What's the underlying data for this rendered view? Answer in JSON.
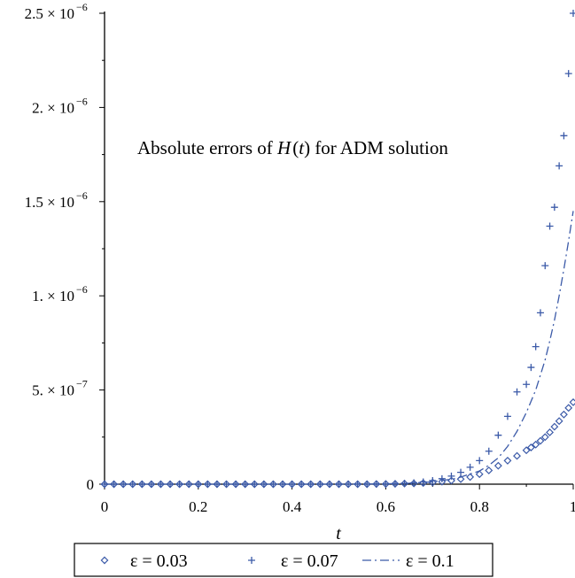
{
  "chart_data": {
    "type": "scatter",
    "annotation": {
      "prefix": "Absolute errors of ",
      "func": "H",
      "arg_open": "(",
      "arg": "t",
      "arg_close": ")",
      "suffix": " for ADM solution"
    },
    "xlabel": "t",
    "ylabel": "",
    "xlim": [
      0,
      1
    ],
    "ylim": [
      0,
      2.5e-06
    ],
    "x_ticks": [
      {
        "value": 0,
        "label": "0"
      },
      {
        "value": 0.2,
        "label": "0.2"
      },
      {
        "value": 0.4,
        "label": "0.4"
      },
      {
        "value": 0.6,
        "label": "0.6"
      },
      {
        "value": 0.8,
        "label": "0.8"
      },
      {
        "value": 1,
        "label": "1"
      }
    ],
    "y_ticks": [
      {
        "value": 0,
        "mantissa": "0",
        "exp": ""
      },
      {
        "value": 5e-07,
        "mantissa": "5. × 10",
        "exp": "−7"
      },
      {
        "value": 1e-06,
        "mantissa": "1. × 10",
        "exp": "−6"
      },
      {
        "value": 1.5e-06,
        "mantissa": "1.5 × 10",
        "exp": "−6"
      },
      {
        "value": 2e-06,
        "mantissa": "2. × 10",
        "exp": "−6"
      },
      {
        "value": 2.5e-06,
        "mantissa": "2.5 × 10",
        "exp": "−6"
      }
    ],
    "grid": false,
    "legend_position": "bottom",
    "color": "#3b5aa8",
    "series": [
      {
        "name": "ε = 0.03",
        "marker": "diamond",
        "x": [
          0,
          0.02,
          0.04,
          0.06,
          0.08,
          0.1,
          0.12,
          0.14,
          0.16,
          0.18,
          0.2,
          0.22,
          0.24,
          0.26,
          0.28,
          0.3,
          0.32,
          0.34,
          0.36,
          0.38,
          0.4,
          0.42,
          0.44,
          0.46,
          0.48,
          0.5,
          0.52,
          0.54,
          0.56,
          0.58,
          0.6,
          0.62,
          0.64,
          0.66,
          0.68,
          0.7,
          0.72,
          0.74,
          0.76,
          0.78,
          0.8,
          0.82,
          0.84,
          0.86,
          0.88,
          0.9,
          0.91,
          0.92,
          0.93,
          0.94,
          0.95,
          0.96,
          0.97,
          0.98,
          0.99,
          1
        ],
        "y": [
          0,
          0,
          0,
          0,
          0,
          0,
          0,
          0,
          0,
          0,
          0,
          0,
          0,
          0,
          0,
          0,
          0,
          0,
          0,
          0,
          0,
          0,
          0,
          0,
          0,
          0,
          0,
          0,
          0,
          1e-09,
          1e-09,
          2e-09,
          3e-09,
          4e-09,
          6e-09,
          9e-09,
          1.3e-08,
          1.9e-08,
          2.7e-08,
          3.8e-08,
          5.3e-08,
          7.3e-08,
          9.8e-08,
          1.25e-07,
          1.5e-07,
          1.8e-07,
          1.95e-07,
          2.1e-07,
          2.3e-07,
          2.5e-07,
          2.75e-07,
          3.05e-07,
          3.35e-07,
          3.7e-07,
          4.05e-07,
          4.35e-07
        ]
      },
      {
        "name": "ε = 0.07",
        "marker": "plus",
        "x": [
          0,
          0.02,
          0.04,
          0.06,
          0.08,
          0.1,
          0.12,
          0.14,
          0.16,
          0.18,
          0.2,
          0.22,
          0.24,
          0.26,
          0.28,
          0.3,
          0.32,
          0.34,
          0.36,
          0.38,
          0.4,
          0.42,
          0.44,
          0.46,
          0.48,
          0.5,
          0.52,
          0.54,
          0.56,
          0.58,
          0.6,
          0.62,
          0.64,
          0.66,
          0.68,
          0.7,
          0.72,
          0.74,
          0.76,
          0.78,
          0.8,
          0.82,
          0.84,
          0.86,
          0.88,
          0.9,
          0.91,
          0.92,
          0.93,
          0.94,
          0.95,
          0.96,
          0.97,
          0.98,
          0.99,
          1
        ],
        "y": [
          0,
          0,
          0,
          0,
          0,
          0,
          0,
          0,
          0,
          0,
          0,
          0,
          0,
          0,
          0,
          0,
          0,
          0,
          0,
          0,
          0,
          0,
          0,
          0,
          0,
          0,
          0,
          0,
          0,
          0,
          1e-09,
          2e-09,
          4e-09,
          7e-09,
          1.2e-08,
          1.9e-08,
          2.9e-08,
          4.3e-08,
          6.3e-08,
          9e-08,
          1.25e-07,
          1.75e-07,
          2.6e-07,
          3.6e-07,
          4.9e-07,
          5.3e-07,
          6.2e-07,
          7.3e-07,
          9.1e-07,
          1.16e-06,
          1.37e-06,
          1.47e-06,
          1.69e-06,
          1.85e-06,
          2.18e-06,
          2.5e-06
        ]
      },
      {
        "name": "ε = 0.1",
        "marker": "dashdot",
        "x": [
          0,
          0.1,
          0.2,
          0.3,
          0.4,
          0.5,
          0.6,
          0.65,
          0.7,
          0.75,
          0.8,
          0.82,
          0.84,
          0.86,
          0.88,
          0.9,
          0.92,
          0.94,
          0.95,
          0.96,
          0.97,
          0.98,
          0.99,
          1
        ],
        "y": [
          0,
          0,
          0,
          0,
          0,
          0,
          2e-09,
          5e-09,
          1.2e-08,
          3e-08,
          7e-08,
          1e-07,
          1.4e-07,
          2e-07,
          2.8e-07,
          3.8e-07,
          5e-07,
          6.6e-07,
          7.6e-07,
          8.7e-07,
          1e-06,
          1.14e-06,
          1.29e-06,
          1.45e-06
        ]
      }
    ]
  }
}
